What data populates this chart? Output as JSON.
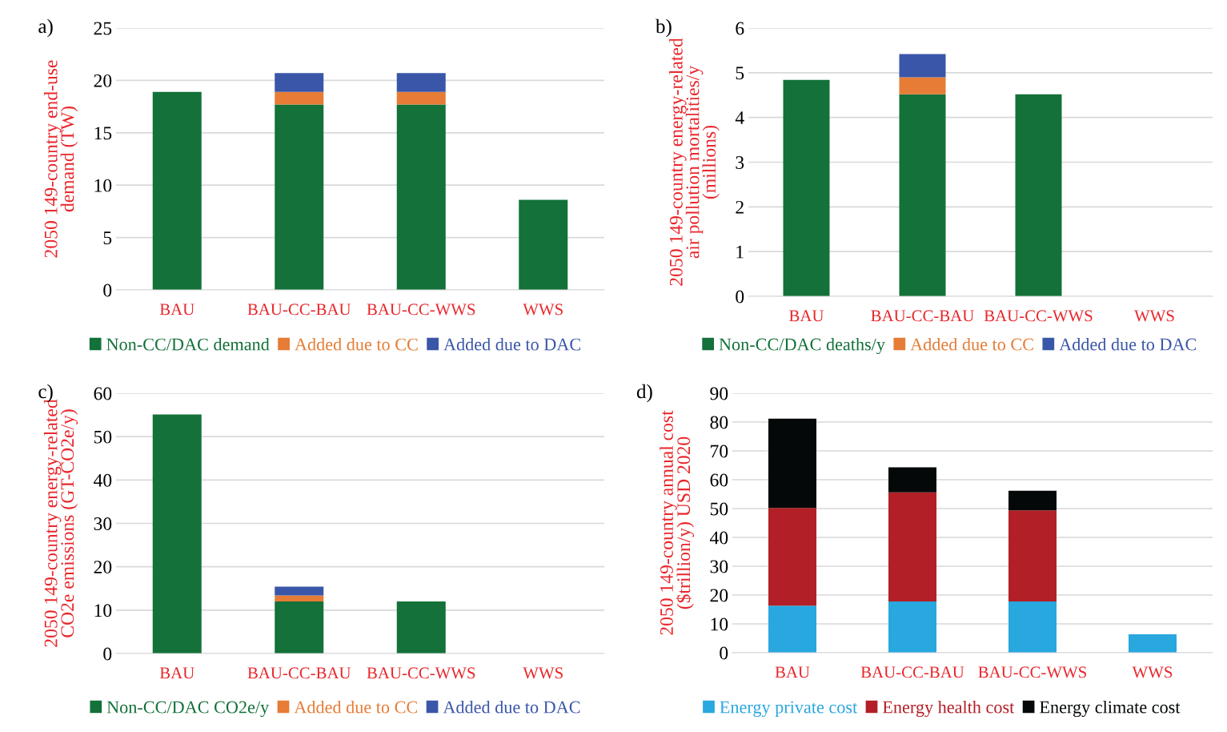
{
  "chart_data": [
    {
      "type": "bar",
      "title": "a)",
      "stacked": true,
      "ylabel": "2050 149-country end-use\ndemand (TW)",
      "categories": [
        "BAU",
        "BAU-CC-BAU",
        "BAU-CC-WWS",
        "WWS"
      ],
      "ylim": [
        0,
        25
      ],
      "yticks": [
        0,
        5,
        10,
        15,
        20,
        25
      ],
      "grid": "y",
      "legend": "bottom",
      "series": [
        {
          "name": "Non-CC/DAC demand",
          "color": "#137139",
          "values": [
            18.9,
            17.7,
            17.7,
            8.6
          ]
        },
        {
          "name": "Added due to CC",
          "color": "#e67c36",
          "values": [
            null,
            1.2,
            1.2,
            null
          ]
        },
        {
          "name": "Added due to DAC",
          "color": "#3a56a8",
          "values": [
            null,
            1.8,
            1.8,
            null
          ]
        }
      ]
    },
    {
      "type": "bar",
      "title": "b)",
      "stacked": true,
      "ylabel": "2050 149-country energy-related\nair pollution mortalities/y\n(millions)",
      "categories": [
        "BAU",
        "BAU-CC-BAU",
        "BAU-CC-WWS",
        "WWS"
      ],
      "ylim": [
        0,
        6
      ],
      "yticks": [
        0,
        1,
        2,
        3,
        4,
        5,
        6
      ],
      "grid": "y",
      "legend": "bottom",
      "series": [
        {
          "name": "Non-CC/DAC deaths/y",
          "color": "#137139",
          "values": [
            4.84,
            4.52,
            4.52,
            null
          ]
        },
        {
          "name": "Added due to CC",
          "color": "#e67c36",
          "values": [
            null,
            0.38,
            null,
            null
          ]
        },
        {
          "name": "Added due to DAC",
          "color": "#3a56a8",
          "values": [
            null,
            0.52,
            null,
            null
          ]
        }
      ]
    },
    {
      "type": "bar",
      "title": "c)",
      "stacked": true,
      "ylabel": "2050 149-country energy-related\nCO2e emissions (GT-CO2e/y)",
      "categories": [
        "BAU",
        "BAU-CC-BAU",
        "BAU-CC-WWS",
        "WWS"
      ],
      "ylim": [
        0,
        60
      ],
      "yticks": [
        0,
        10,
        20,
        30,
        40,
        50,
        60
      ],
      "grid": "y",
      "legend": "bottom",
      "series": [
        {
          "name": "Non-CC/DAC CO2e/y",
          "color": "#137139",
          "values": [
            55.1,
            12.0,
            12.0,
            null
          ]
        },
        {
          "name": "Added due to CC",
          "color": "#e67c36",
          "values": [
            null,
            1.4,
            null,
            null
          ]
        },
        {
          "name": "Added due to DAC",
          "color": "#3a56a8",
          "values": [
            null,
            2.0,
            null,
            null
          ]
        }
      ]
    },
    {
      "type": "bar",
      "title": "d)",
      "stacked": true,
      "ylabel": "2050 149-country annual cost\n($trillion/y) USD 2020",
      "categories": [
        "BAU",
        "BAU-CC-BAU",
        "BAU-CC-WWS",
        "WWS"
      ],
      "ylim": [
        0,
        90
      ],
      "yticks": [
        0,
        10,
        20,
        30,
        40,
        50,
        60,
        70,
        80,
        90
      ],
      "grid": "y",
      "legend": "bottom",
      "series": [
        {
          "name": "Energy private cost",
          "color": "#29a7df",
          "values": [
            16.3,
            17.8,
            17.8,
            6.4
          ]
        },
        {
          "name": "Energy health cost",
          "color": "#b31f26",
          "values": [
            33.9,
            37.8,
            31.6,
            null
          ]
        },
        {
          "name": "Energy climate cost",
          "color": "#050809",
          "values": [
            31.0,
            8.7,
            6.8,
            null
          ]
        }
      ]
    }
  ]
}
